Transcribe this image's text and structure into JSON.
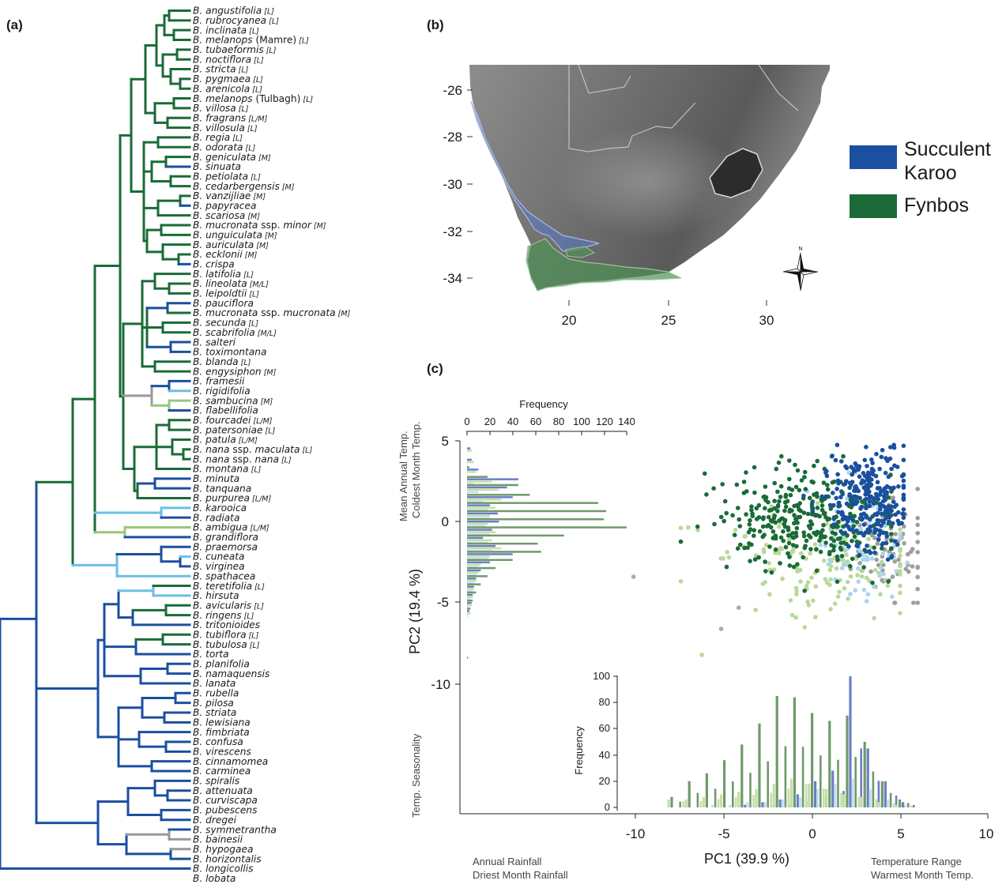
{
  "panels": {
    "a": "(a)",
    "b": "(b)",
    "c": "(c)"
  },
  "colors": {
    "succulent_karoo": "#1b4fa0",
    "fynbos": "#1a6b38",
    "light_blue": "#6bbfe6",
    "light_green": "#96c77e",
    "grey": "#999999",
    "hist_blue": "#6a7fc4",
    "hist_green": "#6f9a6a",
    "hist_lightgreen": "#c6dea8",
    "hist_lightblue": "#bfe0f0"
  },
  "tree": {
    "tips": [
      {
        "name": "B. angustifolia",
        "hab": "[L]",
        "clr": "g"
      },
      {
        "name": "B. rubrocyanea",
        "hab": "[L]",
        "clr": "g"
      },
      {
        "name": "B. inclinata",
        "hab": "[L]",
        "clr": "g"
      },
      {
        "name": "B. melanops",
        "extra": "(Mamre)",
        "hab": "[L]",
        "clr": "g"
      },
      {
        "name": "B. tubaeformis",
        "hab": "[L]",
        "clr": "g"
      },
      {
        "name": "B. noctiflora",
        "hab": "[L]",
        "clr": "g"
      },
      {
        "name": "B. stricta",
        "hab": "[L]",
        "clr": "g"
      },
      {
        "name": "B. pygmaea",
        "hab": "[L]",
        "clr": "g"
      },
      {
        "name": "B. arenicola",
        "hab": "[L]",
        "clr": "g"
      },
      {
        "name": "B. melanops",
        "extra": "(Tulbagh)",
        "hab": "[L]",
        "clr": "g"
      },
      {
        "name": "B. villosa",
        "hab": "[L]",
        "clr": "g"
      },
      {
        "name": "B. fragrans",
        "hab": "[L/M]",
        "clr": "g"
      },
      {
        "name": "B. villosula",
        "hab": "[L]",
        "clr": "g"
      },
      {
        "name": "B. regia",
        "hab": "[L]",
        "clr": "g"
      },
      {
        "name": "B. odorata",
        "hab": "[L]",
        "clr": "g"
      },
      {
        "name": "B. geniculata",
        "hab": "[M]",
        "clr": "g"
      },
      {
        "name": "B. sinuata",
        "hab": "",
        "clr": "b"
      },
      {
        "name": "B. petiolata",
        "hab": "[L]",
        "clr": "g"
      },
      {
        "name": "B. cedarbergensis",
        "hab": "[M]",
        "clr": "g"
      },
      {
        "name": "B. vanzijliae",
        "hab": "[M]",
        "clr": "g"
      },
      {
        "name": "B. papyracea",
        "hab": "",
        "clr": "b"
      },
      {
        "name": "B. scariosa",
        "hab": "[M]",
        "clr": "g"
      },
      {
        "name": "B. mucronata",
        "extra": "ssp.",
        "name2": "minor",
        "hab": "[M]",
        "clr": "g"
      },
      {
        "name": "B. unguiculata",
        "hab": "[M]",
        "clr": "g"
      },
      {
        "name": "B. auriculata",
        "hab": "[M]",
        "clr": "g"
      },
      {
        "name": "B. ecklonii",
        "hab": "[M]",
        "clr": "g"
      },
      {
        "name": "B. crispa",
        "hab": "",
        "clr": "b"
      },
      {
        "name": "B. latifolia",
        "hab": "[L]",
        "clr": "g"
      },
      {
        "name": "B. lineolata",
        "hab": "[M/L]",
        "clr": "g"
      },
      {
        "name": "B. leipoldtii",
        "hab": "[L]",
        "clr": "g"
      },
      {
        "name": "B. pauciflora",
        "hab": "",
        "clr": "b"
      },
      {
        "name": "B. mucronata",
        "extra": "ssp.",
        "name2": "mucronata",
        "hab": "[M]",
        "clr": "g"
      },
      {
        "name": "B. secunda",
        "hab": "[L]",
        "clr": "g"
      },
      {
        "name": "B. scabrifolia",
        "hab": "[M/L]",
        "clr": "g"
      },
      {
        "name": "B. salteri",
        "hab": "",
        "clr": "b"
      },
      {
        "name": "B. toximontana",
        "hab": "",
        "clr": "b"
      },
      {
        "name": "B. blanda",
        "hab": "[L]",
        "clr": "g"
      },
      {
        "name": "B. engysiphon",
        "hab": "[M]",
        "clr": "g"
      },
      {
        "name": "B. framesii",
        "hab": "",
        "clr": "b"
      },
      {
        "name": "B. rigidifolia",
        "hab": "",
        "clr": "lb"
      },
      {
        "name": "B. sambucina",
        "hab": "[M]",
        "clr": "lg"
      },
      {
        "name": "B. flabellifolia",
        "hab": "",
        "clr": "b"
      },
      {
        "name": "B. fourcadei",
        "hab": "[L/M]",
        "clr": "g"
      },
      {
        "name": "B. patersoniae",
        "hab": "[L]",
        "clr": "g"
      },
      {
        "name": "B. patula",
        "hab": "[L/M]",
        "clr": "g"
      },
      {
        "name": "B. nana",
        "extra": "ssp.",
        "name2": "maculata",
        "hab": "[L]",
        "clr": "g"
      },
      {
        "name": "B. nana",
        "extra": "ssp.",
        "name2": "nana",
        "hab": "[L]",
        "clr": "g"
      },
      {
        "name": "B. montana",
        "hab": "[L]",
        "clr": "g"
      },
      {
        "name": "B. minuta",
        "hab": "",
        "clr": "b"
      },
      {
        "name": "B. tanquana",
        "hab": "",
        "clr": "b"
      },
      {
        "name": "B. purpurea",
        "hab": "[L/M]",
        "clr": "g"
      },
      {
        "name": "B. karooica",
        "hab": "",
        "clr": "lb"
      },
      {
        "name": "B. radiata",
        "hab": "",
        "clr": "b"
      },
      {
        "name": "B. ambigua",
        "hab": "[L/M]",
        "clr": "lg"
      },
      {
        "name": "B. grandiflora",
        "hab": "",
        "clr": "b"
      },
      {
        "name": "B. praemorsa",
        "hab": "",
        "clr": "b"
      },
      {
        "name": "B. cuneata",
        "hab": "",
        "clr": "lb"
      },
      {
        "name": "B. virginea",
        "hab": "",
        "clr": "b"
      },
      {
        "name": "B. spathacea",
        "hab": "",
        "clr": "lb"
      },
      {
        "name": "B. teretifolia",
        "hab": "[L]",
        "clr": "g"
      },
      {
        "name": "B. hirsuta",
        "hab": "",
        "clr": "lb"
      },
      {
        "name": "B. avicularis",
        "hab": "[L]",
        "clr": "g"
      },
      {
        "name": "B. ringens",
        "hab": "[L]",
        "clr": "g"
      },
      {
        "name": "B. tritonioides",
        "hab": "",
        "clr": "b"
      },
      {
        "name": "B. tubiflora",
        "hab": "[L]",
        "clr": "g"
      },
      {
        "name": "B. tubulosa",
        "hab": "[L]",
        "clr": "g"
      },
      {
        "name": "B. torta",
        "hab": "",
        "clr": "b"
      },
      {
        "name": "B. planifolia",
        "hab": "",
        "clr": "b"
      },
      {
        "name": "B. namaquensis",
        "hab": "",
        "clr": "b"
      },
      {
        "name": "B. lanata",
        "hab": "",
        "clr": "b"
      },
      {
        "name": "B. rubella",
        "hab": "",
        "clr": "b"
      },
      {
        "name": "B. pilosa",
        "hab": "",
        "clr": "b"
      },
      {
        "name": "B. striata",
        "hab": "",
        "clr": "b"
      },
      {
        "name": "B. lewisiana",
        "hab": "",
        "clr": "b"
      },
      {
        "name": "B. fimbriata",
        "hab": "",
        "clr": "b"
      },
      {
        "name": "B. confusa",
        "hab": "",
        "clr": "b"
      },
      {
        "name": "B. virescens",
        "hab": "",
        "clr": "b"
      },
      {
        "name": "B. cinnamomea",
        "hab": "",
        "clr": "b"
      },
      {
        "name": "B. carminea",
        "hab": "",
        "clr": "b"
      },
      {
        "name": "B. spiralis",
        "hab": "",
        "clr": "b"
      },
      {
        "name": "B. attenuata",
        "hab": "",
        "clr": "b"
      },
      {
        "name": "B. curviscapa",
        "hab": "",
        "clr": "b"
      },
      {
        "name": "B. pubescens",
        "hab": "",
        "clr": "b"
      },
      {
        "name": "B. dregei",
        "hab": "",
        "clr": "b"
      },
      {
        "name": "B. symmetrantha",
        "hab": "",
        "clr": "b"
      },
      {
        "name": "B. bainesii",
        "hab": "",
        "clr": "gr"
      },
      {
        "name": "B. hypogaea",
        "hab": "",
        "clr": "gr"
      },
      {
        "name": "B. horizontalis",
        "hab": "",
        "clr": "b"
      },
      {
        "name": "B. longicollis",
        "hab": "",
        "clr": "b"
      },
      {
        "name": "B. lobata",
        "hab": "",
        "clr": "b"
      }
    ]
  },
  "map": {
    "y_ticks": [
      "-26",
      "-28",
      "-30",
      "-32",
      "-34"
    ],
    "x_ticks": [
      "20",
      "25",
      "30"
    ],
    "legend": [
      {
        "label_lines": [
          "Succulent",
          "Karoo"
        ],
        "color": "#1b4fa0"
      },
      {
        "label_lines": [
          "Fynbos"
        ],
        "color": "#1a6b38"
      }
    ],
    "compass_label": "N"
  },
  "chart_data": {
    "type": "scatter",
    "xlabel": "PC1 (39.9 %)",
    "ylabel": "PC2 (19.4 %)",
    "x_ticks": [
      "-10",
      "-5",
      "0",
      "5",
      "10"
    ],
    "y_ticks": [
      "5",
      "0",
      "-5",
      "-10"
    ],
    "xlim": [
      -10,
      10
    ],
    "ylim": [
      -10,
      5
    ],
    "loadings": {
      "left_top": [
        "Mean Annual Temp.",
        "Coldest Month Temp."
      ],
      "left_bottom": "Temp. Seasonality",
      "bottom_left": [
        "Annual Rainfall",
        "Driest Month Rainfall"
      ],
      "bottom_right": [
        "Temperature Range",
        "Warmest Month Temp."
      ]
    },
    "pc2_histogram": {
      "title": "Frequency",
      "ticks": [
        "0",
        "20",
        "40",
        "60",
        "80",
        "100",
        "120",
        "140"
      ],
      "xlim": [
        0,
        140
      ]
    },
    "pc1_histogram": {
      "ylabel": "Frequency",
      "ticks": [
        "100",
        "80",
        "60",
        "40",
        "20",
        "0"
      ],
      "ylim": [
        0,
        100
      ],
      "bin_centers": [
        -8,
        -7,
        -6,
        -5,
        -4,
        -3,
        -2,
        -1,
        0,
        1,
        2,
        3,
        4,
        5
      ],
      "green_peaks": [
        8,
        20,
        26,
        36,
        48,
        64,
        85,
        84,
        72,
        66,
        70,
        50,
        20,
        6
      ]
    }
  }
}
